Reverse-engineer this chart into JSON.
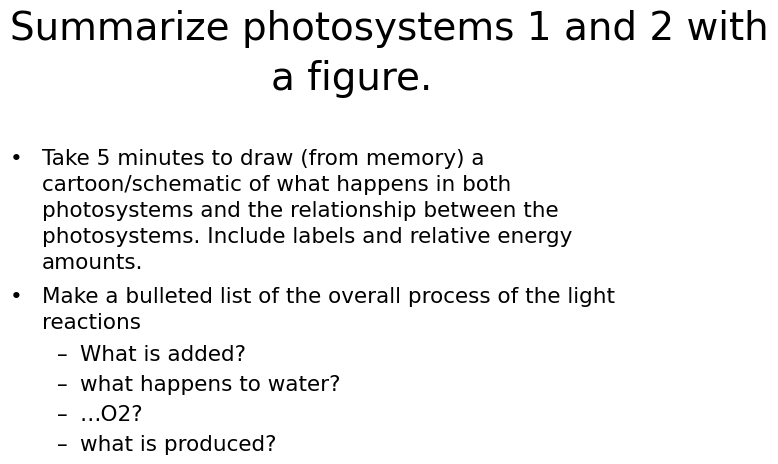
{
  "title_line1": "Summarize photosystems 1 and 2 with",
  "title_line2": "a figure.",
  "background_color": "#ffffff",
  "text_color": "#000000",
  "title_fontsize": 28,
  "body_fontsize": 15.5,
  "bullet1_lines": [
    "Take 5 minutes to draw (from memory) a",
    "cartoon/schematic of what happens in both",
    "photosystems and the relationship between the",
    "photosystems. Include labels and relative energy",
    "amounts."
  ],
  "bullet2_lines": [
    "Make a bulleted list of the overall process of the light",
    "reactions"
  ],
  "sub_bullets": [
    "What is added?",
    "what happens to water?",
    "…O2?",
    "what is produced?"
  ],
  "font_family": "DejaVu Sans"
}
